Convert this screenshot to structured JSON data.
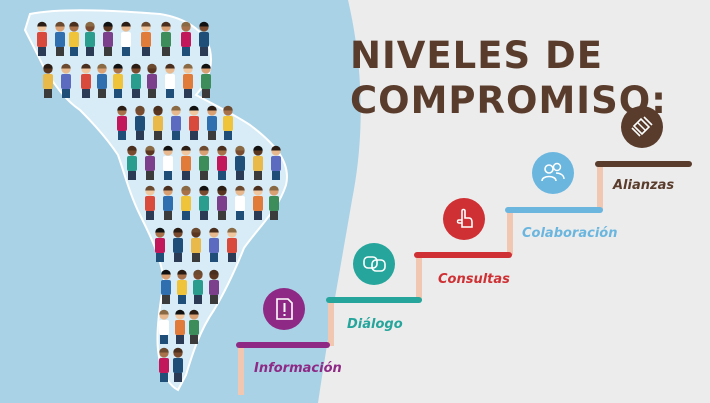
{
  "title": {
    "line1": "NIVELES DE",
    "line2": "COMPROMISO:",
    "color": "#5a3c2c"
  },
  "steps": [
    {
      "label": "Información",
      "color": "#8e2a85",
      "icon": "document-alert-icon"
    },
    {
      "label": "Diálogo",
      "color": "#25a59b",
      "icon": "speech-bubbles-icon"
    },
    {
      "label": "Consultas",
      "color": "#cf3034",
      "icon": "hand-pointer-icon"
    },
    {
      "label": "Colaboración",
      "color": "#6ab6df",
      "icon": "people-icon"
    },
    {
      "label": "Alianzas",
      "color": "#5a3c2c",
      "icon": "handshake-icon"
    }
  ],
  "colors": {
    "background": "#ececec",
    "ocean": "#a9d2e7",
    "riser": "#f2c7b1"
  },
  "map_icon": "latin-america-people-map-icon"
}
